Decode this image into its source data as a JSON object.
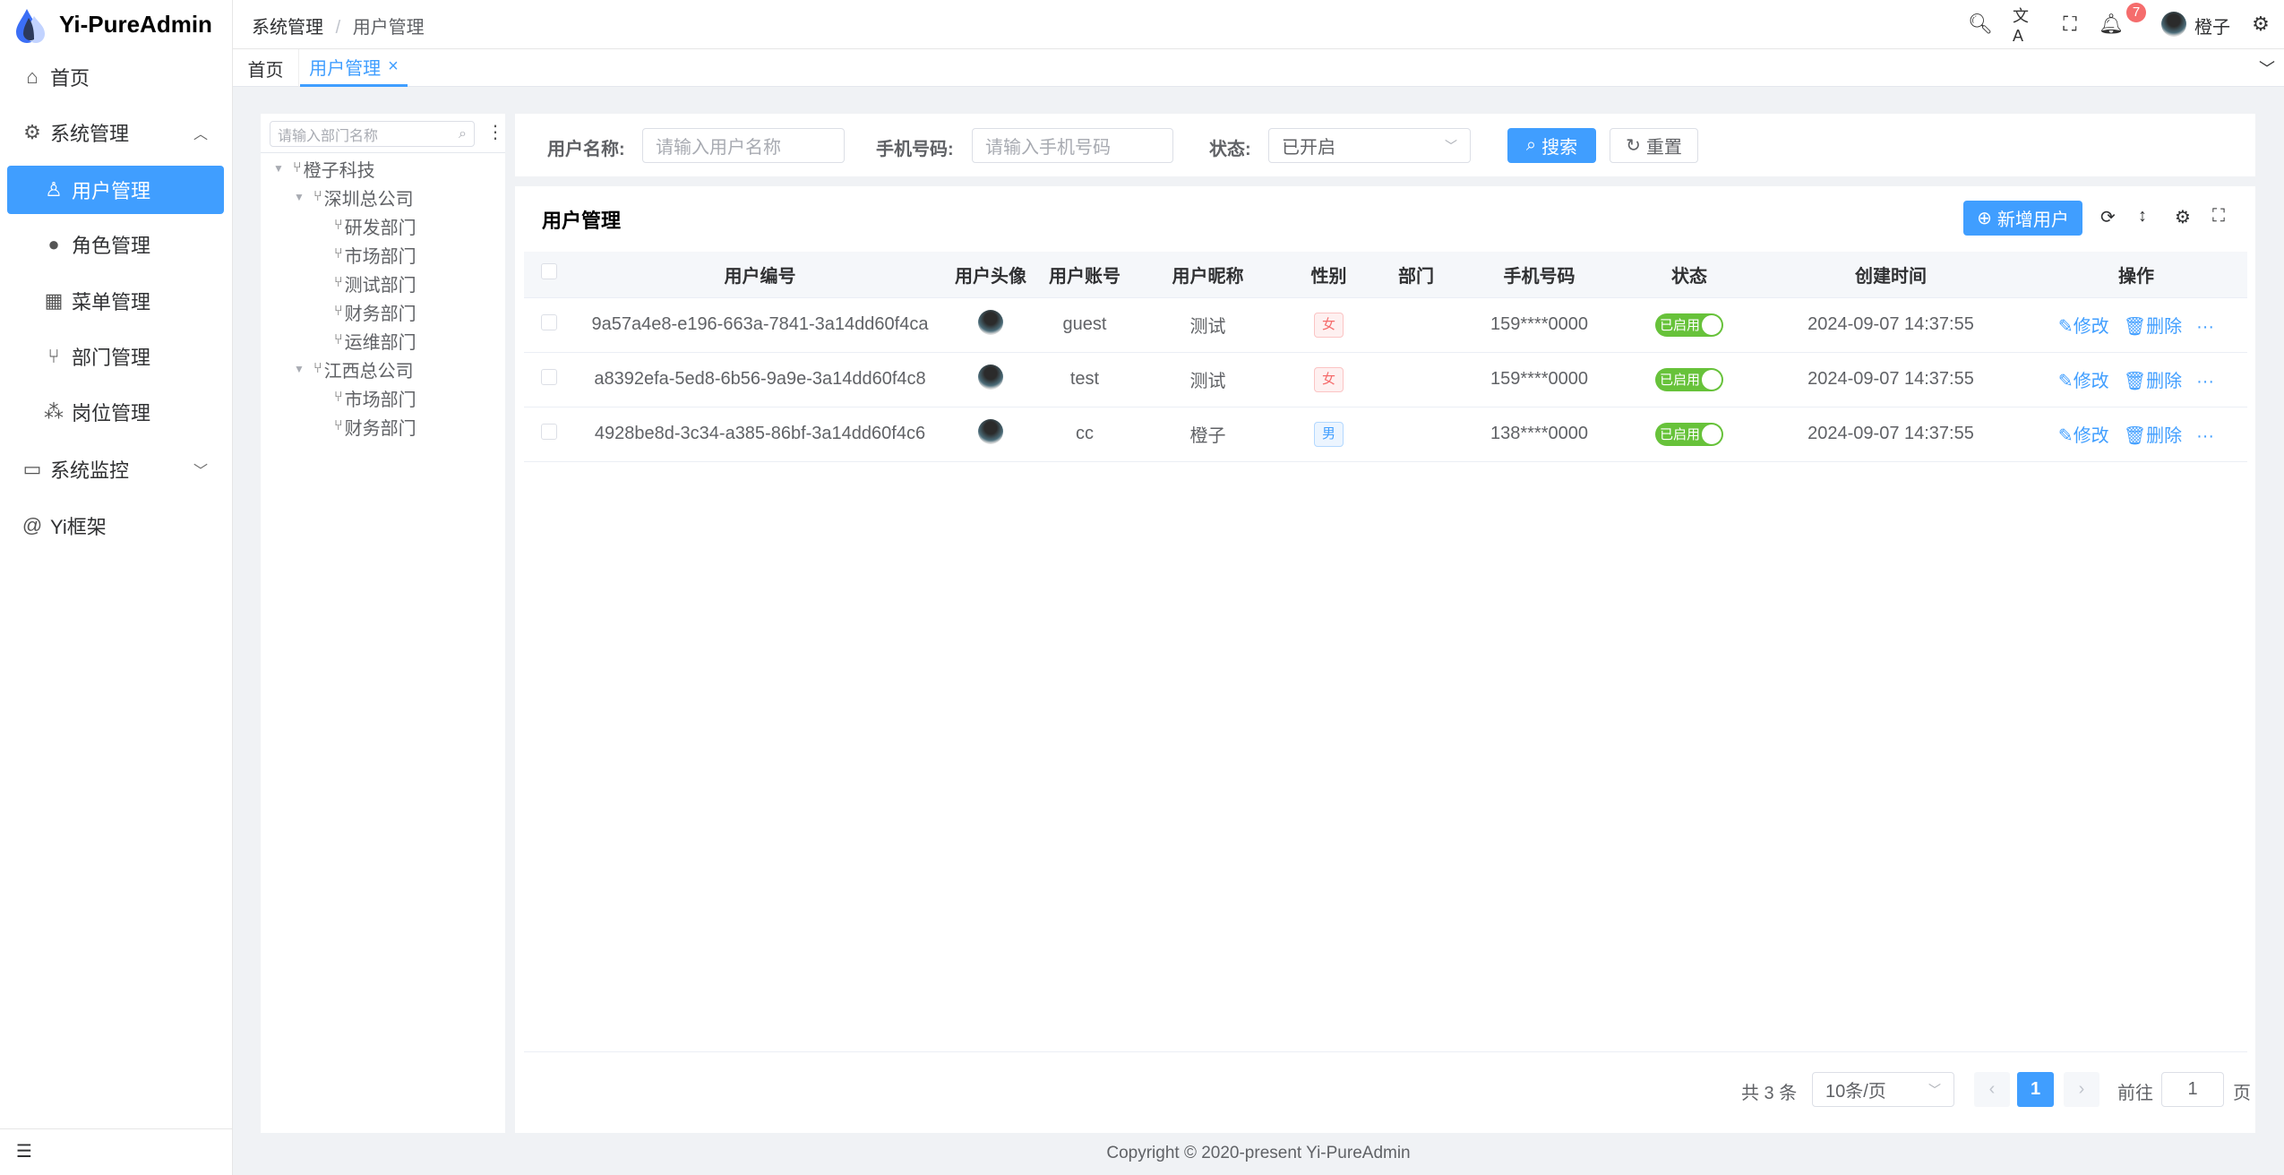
{
  "app": {
    "title": "Yi-PureAdmin",
    "accent": "#409eff"
  },
  "sidebar": {
    "items": [
      {
        "label": "首页",
        "icon": "home-icon"
      },
      {
        "label": "系统管理",
        "icon": "gear-icon",
        "expanded": true
      },
      {
        "label": "用户管理",
        "icon": "user-icon",
        "active": true
      },
      {
        "label": "角色管理",
        "icon": "role-icon"
      },
      {
        "label": "菜单管理",
        "icon": "menu-grid-icon"
      },
      {
        "label": "部门管理",
        "icon": "branch-icon"
      },
      {
        "label": "岗位管理",
        "icon": "network-icon"
      },
      {
        "label": "系统监控",
        "icon": "monitor-icon"
      },
      {
        "label": "Yi框架",
        "icon": "at-icon"
      }
    ]
  },
  "header": {
    "breadcrumb": [
      "系统管理",
      "用户管理"
    ],
    "notification_count": "7",
    "username": "橙子"
  },
  "tabs": [
    {
      "label": "首页"
    },
    {
      "label": "用户管理",
      "active": true
    }
  ],
  "tree": {
    "placeholder": "请输入部门名称",
    "nodes": [
      {
        "label": "橙子科技",
        "level": 0,
        "toggle": true
      },
      {
        "label": "深圳总公司",
        "level": 1,
        "toggle": true
      },
      {
        "label": "研发部门",
        "level": 2
      },
      {
        "label": "市场部门",
        "level": 2
      },
      {
        "label": "测试部门",
        "level": 2
      },
      {
        "label": "财务部门",
        "level": 2
      },
      {
        "label": "运维部门",
        "level": 2
      },
      {
        "label": "江西总公司",
        "level": 1,
        "toggle": true
      },
      {
        "label": "市场部门",
        "level": 2
      },
      {
        "label": "财务部门",
        "level": 2
      }
    ]
  },
  "search": {
    "username_label": "用户名称:",
    "username_placeholder": "请输入用户名称",
    "phone_label": "手机号码:",
    "phone_placeholder": "请输入手机号码",
    "status_label": "状态:",
    "status_value": "已开启",
    "search_button": "搜索",
    "reset_button": "重置"
  },
  "table": {
    "title": "用户管理",
    "add_button": "新增用户",
    "columns": [
      "用户编号",
      "用户头像",
      "用户账号",
      "用户昵称",
      "性别",
      "部门",
      "手机号码",
      "状态",
      "创建时间",
      "操作"
    ],
    "rows": [
      {
        "id": "9a57a4e8-e196-663a-7841-3a14dd60f4ca",
        "account": "guest",
        "nick": "测试",
        "gender": "女",
        "dept": "",
        "phone": "159****0000",
        "status": "已启用",
        "created": "2024-09-07 14:37:55"
      },
      {
        "id": "a8392efa-5ed8-6b56-9a9e-3a14dd60f4c8",
        "account": "test",
        "nick": "测试",
        "gender": "女",
        "dept": "",
        "phone": "159****0000",
        "status": "已启用",
        "created": "2024-09-07 14:37:55"
      },
      {
        "id": "4928be8d-3c34-a385-86bf-3a14dd60f4c6",
        "account": "cc",
        "nick": "橙子",
        "gender": "男",
        "dept": "",
        "phone": "138****0000",
        "status": "已启用",
        "created": "2024-09-07 14:37:55"
      }
    ],
    "edit_label": "修改",
    "delete_label": "删除"
  },
  "pagination": {
    "total": "共 3 条",
    "page_size": "10条/页",
    "current": "1",
    "goto_label": "前往",
    "goto_value": "1",
    "page_suffix": "页"
  },
  "footer": {
    "copyright": "Copyright © 2020-present Yi-PureAdmin"
  }
}
